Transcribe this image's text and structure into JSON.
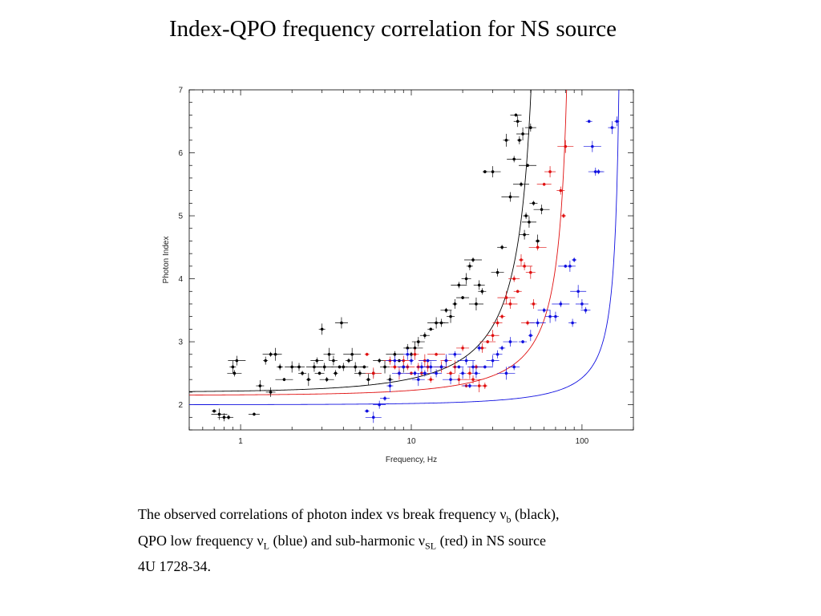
{
  "slide": {
    "title": "Index-QPO frequency correlation for NS source"
  },
  "caption": {
    "part1": "The observed  correlations of photon index vs break frequency ",
    "nu_b_symbol": "ν",
    "nu_b_sub": "b",
    "part2": " (black),",
    "part3": "QPO low frequency ",
    "nu_L_symbol": "ν",
    "nu_L_sub": "L",
    "part4": " (blue) and sub-harmonic ",
    "nu_SL_symbol": "ν",
    "nu_SL_sub": "SL",
    "part5": " (red) in NS source",
    "part6": "4U 1728-34."
  },
  "chart_data": {
    "type": "scatter",
    "title": "",
    "xlabel": "Frequency, Hz",
    "ylabel": "Photon Index",
    "x_scale": "log",
    "xlim": [
      0.5,
      200
    ],
    "ylim": [
      1.6,
      7
    ],
    "x_ticks": [
      1,
      10,
      100
    ],
    "x_tick_labels": [
      "1",
      "10",
      "100"
    ],
    "y_ticks": [
      2,
      3,
      4,
      5,
      6,
      7
    ],
    "y_tick_labels": [
      "2",
      "3",
      "4",
      "5",
      "6",
      "7"
    ],
    "grid": false,
    "legend": "none",
    "series": [
      {
        "color": "#000000",
        "error_bars": true,
        "points": [
          [
            0.7,
            1.9
          ],
          [
            0.75,
            1.85
          ],
          [
            0.8,
            1.8
          ],
          [
            0.85,
            1.8
          ],
          [
            0.9,
            2.6
          ],
          [
            0.95,
            2.7
          ],
          [
            0.92,
            2.5
          ],
          [
            1.2,
            1.85
          ],
          [
            1.3,
            2.3
          ],
          [
            1.4,
            2.7
          ],
          [
            1.5,
            2.8
          ],
          [
            1.6,
            2.8
          ],
          [
            1.5,
            2.2
          ],
          [
            1.7,
            2.6
          ],
          [
            1.8,
            2.4
          ],
          [
            2.0,
            2.6
          ],
          [
            2.2,
            2.6
          ],
          [
            2.3,
            2.5
          ],
          [
            2.5,
            2.4
          ],
          [
            2.7,
            2.6
          ],
          [
            2.8,
            2.7
          ],
          [
            2.9,
            2.5
          ],
          [
            3.0,
            3.2
          ],
          [
            3.1,
            2.6
          ],
          [
            3.2,
            2.4
          ],
          [
            3.3,
            2.8
          ],
          [
            3.5,
            2.7
          ],
          [
            3.6,
            2.5
          ],
          [
            3.8,
            2.6
          ],
          [
            3.9,
            3.3
          ],
          [
            4.0,
            2.6
          ],
          [
            4.3,
            2.7
          ],
          [
            4.5,
            2.8
          ],
          [
            4.7,
            2.6
          ],
          [
            5.0,
            2.5
          ],
          [
            5.3,
            2.6
          ],
          [
            5.6,
            2.4
          ],
          [
            6.0,
            2.5
          ],
          [
            6.5,
            2.7
          ],
          [
            7.0,
            2.6
          ],
          [
            7.5,
            2.4
          ],
          [
            8.0,
            2.8
          ],
          [
            8.5,
            2.7
          ],
          [
            9.0,
            2.6
          ],
          [
            9.5,
            2.9
          ],
          [
            10.0,
            2.8
          ],
          [
            10.5,
            2.9
          ],
          [
            11.0,
            3.0
          ],
          [
            12.0,
            3.1
          ],
          [
            13.0,
            3.2
          ],
          [
            14.0,
            3.3
          ],
          [
            15.0,
            3.3
          ],
          [
            16.0,
            3.5
          ],
          [
            17.0,
            3.4
          ],
          [
            18.0,
            3.6
          ],
          [
            19.0,
            3.9
          ],
          [
            20.0,
            3.7
          ],
          [
            21.0,
            4.0
          ],
          [
            22.0,
            4.2
          ],
          [
            23.0,
            4.3
          ],
          [
            24.0,
            3.6
          ],
          [
            25.0,
            3.9
          ],
          [
            26.0,
            3.8
          ],
          [
            27.0,
            5.7
          ],
          [
            30.0,
            5.7
          ],
          [
            32.0,
            4.1
          ],
          [
            34.0,
            4.5
          ],
          [
            36.0,
            6.2
          ],
          [
            38.0,
            5.3
          ],
          [
            40.0,
            5.9
          ],
          [
            41.0,
            6.6
          ],
          [
            42.0,
            6.5
          ],
          [
            43.0,
            6.2
          ],
          [
            44.0,
            5.5
          ],
          [
            45.0,
            6.3
          ],
          [
            46.0,
            4.7
          ],
          [
            47.0,
            5.0
          ],
          [
            48.0,
            5.8
          ],
          [
            49.0,
            4.9
          ],
          [
            50.0,
            6.4
          ],
          [
            52.0,
            5.2
          ],
          [
            55.0,
            4.6
          ],
          [
            58.0,
            5.1
          ]
        ]
      },
      {
        "color": "#e01010",
        "error_bars": true,
        "points": [
          [
            5.5,
            2.8
          ],
          [
            6.0,
            2.5
          ],
          [
            7.5,
            2.7
          ],
          [
            8.0,
            2.6
          ],
          [
            8.5,
            2.5
          ],
          [
            9.0,
            2.7
          ],
          [
            9.5,
            2.6
          ],
          [
            10.0,
            2.5
          ],
          [
            10.5,
            2.8
          ],
          [
            11.0,
            2.6
          ],
          [
            11.5,
            2.5
          ],
          [
            12.0,
            2.7
          ],
          [
            12.5,
            2.6
          ],
          [
            13.0,
            2.4
          ],
          [
            14.0,
            2.8
          ],
          [
            15.0,
            2.6
          ],
          [
            16.0,
            2.7
          ],
          [
            17.0,
            2.5
          ],
          [
            18.0,
            2.6
          ],
          [
            19.0,
            2.4
          ],
          [
            20.0,
            2.9
          ],
          [
            21.0,
            2.3
          ],
          [
            22.0,
            2.5
          ],
          [
            23.0,
            2.4
          ],
          [
            24.0,
            2.6
          ],
          [
            25.0,
            2.3
          ],
          [
            26.0,
            2.9
          ],
          [
            27.0,
            2.3
          ],
          [
            28.0,
            3.0
          ],
          [
            30.0,
            3.1
          ],
          [
            32.0,
            3.3
          ],
          [
            34.0,
            3.4
          ],
          [
            36.0,
            3.7
          ],
          [
            38.0,
            3.6
          ],
          [
            40.0,
            4.0
          ],
          [
            42.0,
            3.8
          ],
          [
            44.0,
            4.3
          ],
          [
            46.0,
            4.2
          ],
          [
            48.0,
            3.3
          ],
          [
            50.0,
            4.1
          ],
          [
            52.0,
            3.6
          ],
          [
            55.0,
            4.5
          ],
          [
            60.0,
            5.5
          ],
          [
            65.0,
            5.7
          ],
          [
            75.0,
            5.4
          ],
          [
            78.0,
            5.0
          ],
          [
            80.0,
            6.1
          ]
        ]
      },
      {
        "color": "#1010e0",
        "error_bars": true,
        "points": [
          [
            5.5,
            1.9
          ],
          [
            6.0,
            1.8
          ],
          [
            6.5,
            2.0
          ],
          [
            7.0,
            2.1
          ],
          [
            7.5,
            2.3
          ],
          [
            8.0,
            2.7
          ],
          [
            8.5,
            2.5
          ],
          [
            9.0,
            2.6
          ],
          [
            9.5,
            2.8
          ],
          [
            10.0,
            2.7
          ],
          [
            10.5,
            2.5
          ],
          [
            11.0,
            2.4
          ],
          [
            11.5,
            2.6
          ],
          [
            12.0,
            2.5
          ],
          [
            12.5,
            2.7
          ],
          [
            13.0,
            2.6
          ],
          [
            14.0,
            2.5
          ],
          [
            15.0,
            2.6
          ],
          [
            16.0,
            2.7
          ],
          [
            17.0,
            2.4
          ],
          [
            18.0,
            2.8
          ],
          [
            19.0,
            2.6
          ],
          [
            20.0,
            2.5
          ],
          [
            21.0,
            2.7
          ],
          [
            22.0,
            2.3
          ],
          [
            23.0,
            2.6
          ],
          [
            24.0,
            2.5
          ],
          [
            25.0,
            2.9
          ],
          [
            27.0,
            2.6
          ],
          [
            30.0,
            2.7
          ],
          [
            32.0,
            2.8
          ],
          [
            34.0,
            2.9
          ],
          [
            36.0,
            2.5
          ],
          [
            38.0,
            3.0
          ],
          [
            40.0,
            2.6
          ],
          [
            45.0,
            3.0
          ],
          [
            50.0,
            3.1
          ],
          [
            55.0,
            3.3
          ],
          [
            60.0,
            3.5
          ],
          [
            65.0,
            3.4
          ],
          [
            70.0,
            3.4
          ],
          [
            75.0,
            3.6
          ],
          [
            80.0,
            4.2
          ],
          [
            85.0,
            4.2
          ],
          [
            88.0,
            3.3
          ],
          [
            90.0,
            4.3
          ],
          [
            95.0,
            3.8
          ],
          [
            100.0,
            3.6
          ],
          [
            105.0,
            3.5
          ],
          [
            110.0,
            6.5
          ],
          [
            115.0,
            6.1
          ],
          [
            120.0,
            5.7
          ],
          [
            125.0,
            5.7
          ],
          [
            150.0,
            6.4
          ],
          [
            160.0,
            6.5
          ]
        ]
      }
    ],
    "curves": [
      {
        "color": "#000000",
        "a": 2.2,
        "b": 0.14,
        "c": 62
      },
      {
        "color": "#e01010",
        "a": 2.15,
        "b": 0.08,
        "c": 92
      },
      {
        "color": "#1010e0",
        "a": 2.0,
        "b": 0.04,
        "c": 175
      }
    ]
  }
}
